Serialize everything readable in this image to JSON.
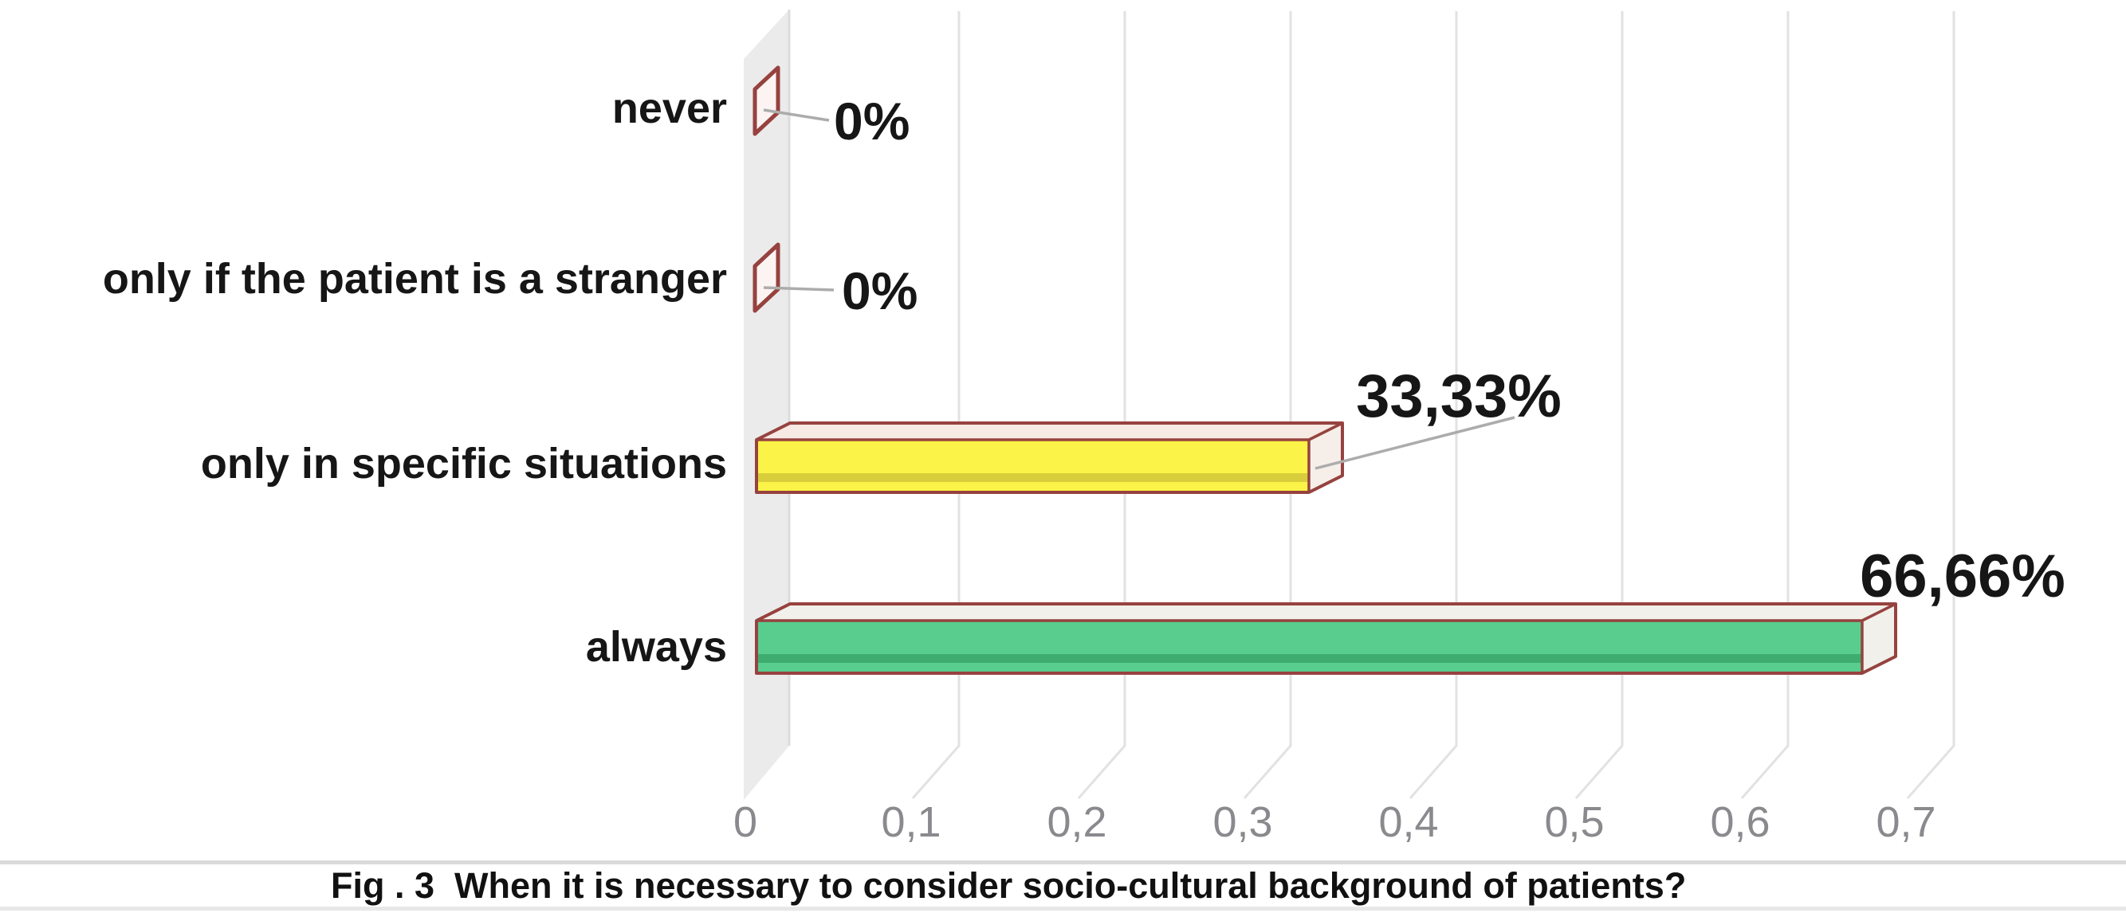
{
  "chart_data": {
    "type": "bar",
    "orientation": "horizontal",
    "style": "3d-box",
    "title": "",
    "xlabel": "",
    "ylabel": "",
    "categories": [
      "never",
      "only if the patient is a stranger",
      "only in specific situations",
      "always"
    ],
    "values": [
      0,
      0,
      33.33,
      66.66
    ],
    "value_labels": [
      "0%",
      "0%",
      "33,33%",
      "66,66%"
    ],
    "xlim": [
      0,
      0.7
    ],
    "x_tick_values": [
      0,
      0.1,
      0.2,
      0.3,
      0.4,
      0.5,
      0.6,
      0.7
    ],
    "x_ticks": [
      "0",
      "0,1",
      "0,2",
      "0,3",
      "0,4",
      "0,5",
      "0,6",
      "0,7"
    ],
    "grid": true,
    "legend": "none",
    "caption": "Fig . 3  When it is necessary to consider socio-cultural background of patients?",
    "bars": [
      {
        "label": "never",
        "value": 0,
        "value_label": "0%",
        "fill": "#FCF4F3"
      },
      {
        "label": "only if the patient is a stranger",
        "value": 0,
        "value_label": "0%",
        "fill": "#FCF4F3"
      },
      {
        "label": "only in specific situations",
        "value": 33.33,
        "value_label": "33,33%",
        "fill": "#FBF347",
        "band": "#D8CE3B",
        "top": "#F7E9E3",
        "cap": "#F6EFE9"
      },
      {
        "label": "always",
        "value": 66.66,
        "value_label": "66,66%",
        "fill": "#58CD8E",
        "band": "#3EAC6F",
        "top": "#F1F0EA",
        "cap": "#F2F0EA"
      }
    ],
    "colors": {
      "bar_outline": "#96423F",
      "wall": "#EBEBEB",
      "wall_edge": "#DCDCDC",
      "gridline": "#E2E2E2",
      "leader_line": "#ACACAC",
      "tick_text": "#8A8A8E",
      "label_text": "#161616",
      "background": "#FFFFFF"
    }
  }
}
